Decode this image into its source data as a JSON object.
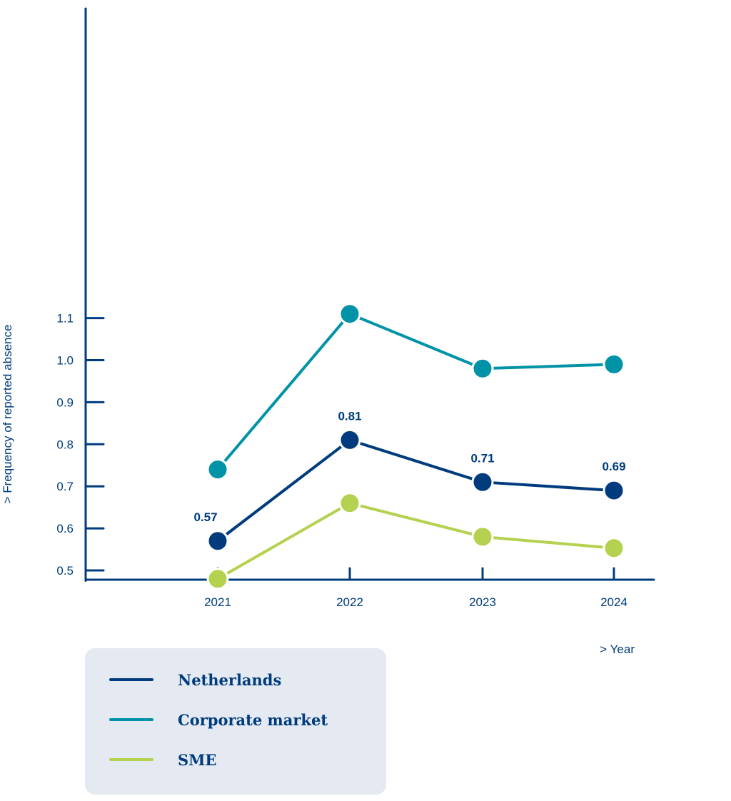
{
  "chart_data": {
    "type": "line",
    "categories": [
      "2021",
      "2022",
      "2023",
      "2024"
    ],
    "ylabel": "> Frequency of reported absence",
    "xlabel": "> Year",
    "ylim": [
      0.4,
      1.12
    ],
    "yticks": [
      "0.5",
      "0.6",
      "0.7",
      "0.8",
      "0.9",
      "1.0",
      "1.1"
    ],
    "grid": false,
    "legend_position": "bottom-left",
    "series": [
      {
        "name": "Netherlands",
        "values": [
          0.57,
          0.81,
          0.71,
          0.69
        ],
        "color": "#003c7d",
        "data_labels": [
          "0.57",
          "0.81",
          "0.71",
          "0.69"
        ]
      },
      {
        "name": "Corporate market",
        "values": [
          0.74,
          1.11,
          0.98,
          0.99
        ],
        "color": "#0093a8"
      },
      {
        "name": "SME",
        "values": [
          0.48,
          0.66,
          0.58,
          0.553
        ],
        "color": "#b4d14f"
      }
    ]
  }
}
